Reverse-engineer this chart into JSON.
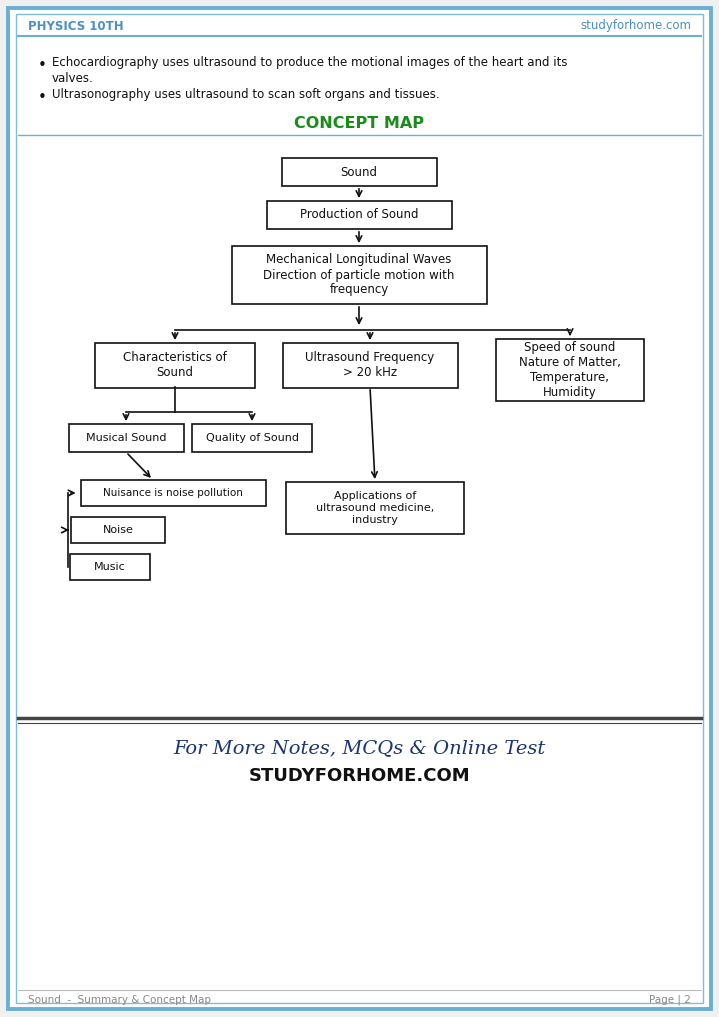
{
  "bg_color": "#f0f0f0",
  "page_bg": "#ffffff",
  "border_color_outer": "#6ab0d4",
  "border_color_inner": "#7bbfda",
  "header_left": "PHYSICS 10TH",
  "header_right": "studyforhome.com",
  "header_color": "#4a90c4",
  "bullet1_line1": "Echocardiography uses ultrasound to produce the motional images of the heart and its",
  "bullet1_line2": "valves.",
  "bullet2": "Ultrasonography uses ultrasound to scan soft organs and tissues.",
  "concept_map_title": "CONCEPT MAP",
  "concept_map_color": "#1a8c1a",
  "footer_line1": "For More Notes, MCQs & Online Test",
  "footer_line2": "STUDYFORHOME.COM",
  "footer_bottom_left": "Sound  -  Summary & Concept Map",
  "footer_bottom_right": "Page | 2",
  "text_color": "#111111",
  "box_edge_color": "#111111",
  "arrow_color": "#111111",
  "separator_color": "#444444",
  "footer_text_color": "#1a3570",
  "footer_bottom_color": "#888888"
}
